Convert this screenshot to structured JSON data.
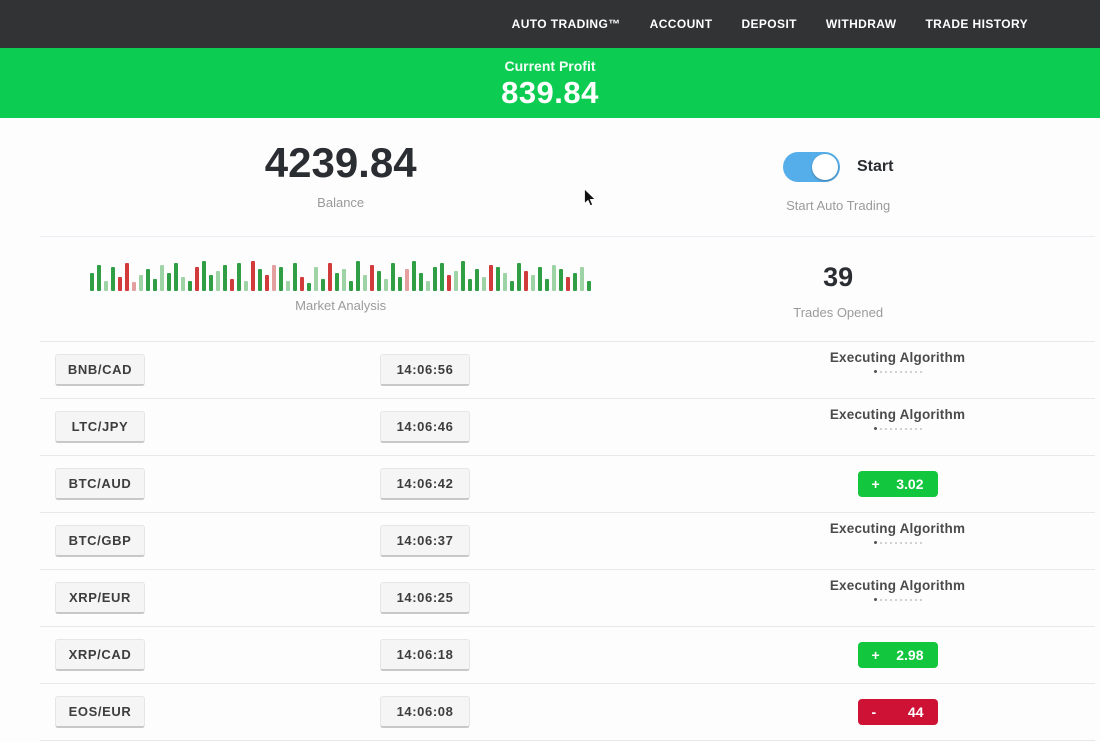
{
  "nav": {
    "items": [
      {
        "label": "AUTO TRADING™"
      },
      {
        "label": "ACCOUNT"
      },
      {
        "label": "DEPOSIT"
      },
      {
        "label": "WITHDRAW"
      },
      {
        "label": "TRADE HISTORY"
      }
    ]
  },
  "banner": {
    "label": "Current Profit",
    "value": "839.84"
  },
  "stats": {
    "balance": "4239.84",
    "balance_label": "Balance",
    "toggle_state": "on",
    "toggle_label": "Start",
    "toggle_caption": "Start Auto Trading"
  },
  "market": {
    "label": "Market Analysis",
    "trades_opened": "39",
    "trades_opened_label": "Trades Opened"
  },
  "chart_data": {
    "type": "bar",
    "title": "Market Analysis",
    "ylim": [
      0,
      30
    ],
    "palette": {
      "g": "#2f9e44",
      "r": "#d23b3b",
      "lg": "#9ed3a6",
      "lr": "#e4a0a0"
    },
    "bars": [
      [
        18,
        "g"
      ],
      [
        26,
        "g"
      ],
      [
        10,
        "lg"
      ],
      [
        24,
        "g"
      ],
      [
        14,
        "r"
      ],
      [
        28,
        "r"
      ],
      [
        9,
        "lr"
      ],
      [
        16,
        "lg"
      ],
      [
        22,
        "g"
      ],
      [
        12,
        "g"
      ],
      [
        26,
        "lg"
      ],
      [
        18,
        "g"
      ],
      [
        28,
        "g"
      ],
      [
        14,
        "lg"
      ],
      [
        10,
        "g"
      ],
      [
        24,
        "r"
      ],
      [
        30,
        "g"
      ],
      [
        16,
        "g"
      ],
      [
        20,
        "lg"
      ],
      [
        26,
        "g"
      ],
      [
        12,
        "r"
      ],
      [
        28,
        "g"
      ],
      [
        10,
        "lg"
      ],
      [
        30,
        "r"
      ],
      [
        22,
        "g"
      ],
      [
        16,
        "r"
      ],
      [
        26,
        "lr"
      ],
      [
        24,
        "g"
      ],
      [
        10,
        "lg"
      ],
      [
        28,
        "g"
      ],
      [
        14,
        "r"
      ],
      [
        8,
        "g"
      ],
      [
        24,
        "lg"
      ],
      [
        12,
        "g"
      ],
      [
        28,
        "r"
      ],
      [
        18,
        "g"
      ],
      [
        22,
        "lg"
      ],
      [
        10,
        "g"
      ],
      [
        30,
        "g"
      ],
      [
        16,
        "lg"
      ],
      [
        26,
        "r"
      ],
      [
        20,
        "g"
      ],
      [
        12,
        "lg"
      ],
      [
        28,
        "g"
      ],
      [
        14,
        "g"
      ],
      [
        22,
        "lr"
      ],
      [
        30,
        "g"
      ],
      [
        18,
        "g"
      ],
      [
        10,
        "lg"
      ],
      [
        24,
        "g"
      ],
      [
        28,
        "g"
      ],
      [
        16,
        "r"
      ],
      [
        20,
        "lg"
      ],
      [
        30,
        "g"
      ],
      [
        12,
        "g"
      ],
      [
        22,
        "g"
      ],
      [
        14,
        "lg"
      ],
      [
        26,
        "r"
      ],
      [
        24,
        "g"
      ],
      [
        18,
        "lg"
      ],
      [
        10,
        "g"
      ],
      [
        28,
        "g"
      ],
      [
        20,
        "r"
      ],
      [
        16,
        "lg"
      ],
      [
        24,
        "g"
      ],
      [
        12,
        "g"
      ],
      [
        26,
        "lg"
      ],
      [
        22,
        "g"
      ],
      [
        14,
        "r"
      ],
      [
        18,
        "g"
      ],
      [
        24,
        "lg"
      ],
      [
        10,
        "g"
      ]
    ]
  },
  "trades": {
    "executing_label": "Executing Algorithm",
    "executing_dots": 10,
    "rows": [
      {
        "pair": "BNB/CAD",
        "time": "14:06:56",
        "status": "executing"
      },
      {
        "pair": "LTC/JPY",
        "time": "14:06:46",
        "status": "executing"
      },
      {
        "pair": "BTC/AUD",
        "time": "14:06:42",
        "status": "profit",
        "sign": "+",
        "value": "3.02"
      },
      {
        "pair": "BTC/GBP",
        "time": "14:06:37",
        "status": "executing"
      },
      {
        "pair": "XRP/EUR",
        "time": "14:06:25",
        "status": "executing"
      },
      {
        "pair": "XRP/CAD",
        "time": "14:06:18",
        "status": "profit",
        "sign": "+",
        "value": "2.98"
      },
      {
        "pair": "EOS/EUR",
        "time": "14:06:08",
        "status": "loss",
        "sign": "-",
        "value": "44"
      }
    ]
  },
  "colors": {
    "nav_bg": "#323335",
    "banner_green": "#0ccd52",
    "profit_green": "#12c73e",
    "loss_red": "#ce1236",
    "toggle_blue": "#55aee9"
  }
}
